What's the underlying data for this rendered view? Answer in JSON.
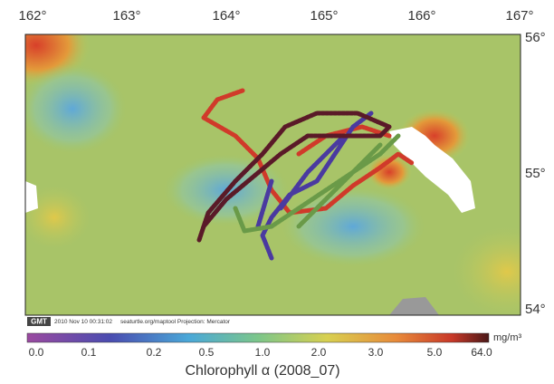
{
  "map": {
    "lon_labels": [
      "162°",
      "163°",
      "164°",
      "165°",
      "166°",
      "167°"
    ],
    "lat_labels": [
      "56°",
      "55°",
      "54°"
    ],
    "stamp": {
      "logo": "GMT",
      "text": "2010 Nov 10 00:31:02     seaturtle.org/maptool Projection: Mercator"
    },
    "colorbar": {
      "ticks": [
        "0.0",
        "0.1",
        "0.2",
        "0.5",
        "1.0",
        "2.0",
        "3.0",
        "5.0",
        "64.0"
      ],
      "unit": "mg/m³"
    },
    "caption": "Chlorophyll α (2008_07)"
  }
}
